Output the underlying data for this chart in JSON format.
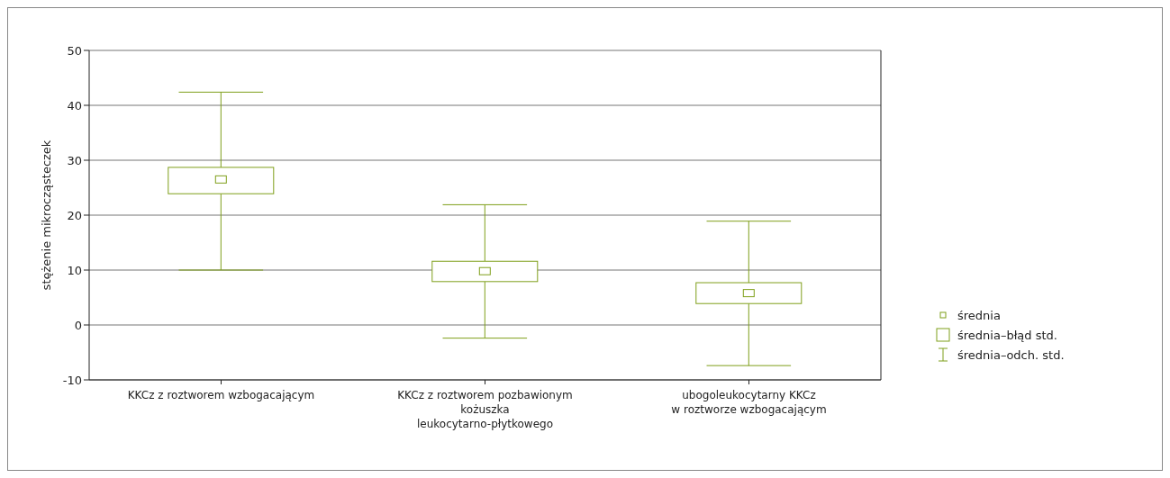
{
  "chart_data": {
    "type": "box",
    "ylabel": "stężenie mikrocząsteczek",
    "categories": [
      "KKCz z roztworem wzbogacającym",
      "KKCz z roztworem pozbawionym\nkożuszka\nleukocytarno-płytkowego",
      "ubogoleukocytarny KKCz\nw roztworze wzbogacającym"
    ],
    "color": "#7f9f1a",
    "boxes": [
      {
        "low": 10.0,
        "q1": 23.9,
        "mean": 26.5,
        "q3": 28.7,
        "high": 42.4
      },
      {
        "low": -2.4,
        "q1": 7.9,
        "mean": 9.8,
        "q3": 11.6,
        "high": 21.9
      },
      {
        "low": -7.4,
        "q1": 3.9,
        "mean": 5.8,
        "q3": 7.7,
        "high": 18.9
      }
    ],
    "ylim": [
      -10,
      50
    ],
    "yticks": [
      -10,
      0,
      10,
      20,
      30,
      40,
      50
    ],
    "grid": "y",
    "annotations": [
      "średnia",
      "średnia–błąd std.",
      "średnia–odch. std."
    ]
  }
}
